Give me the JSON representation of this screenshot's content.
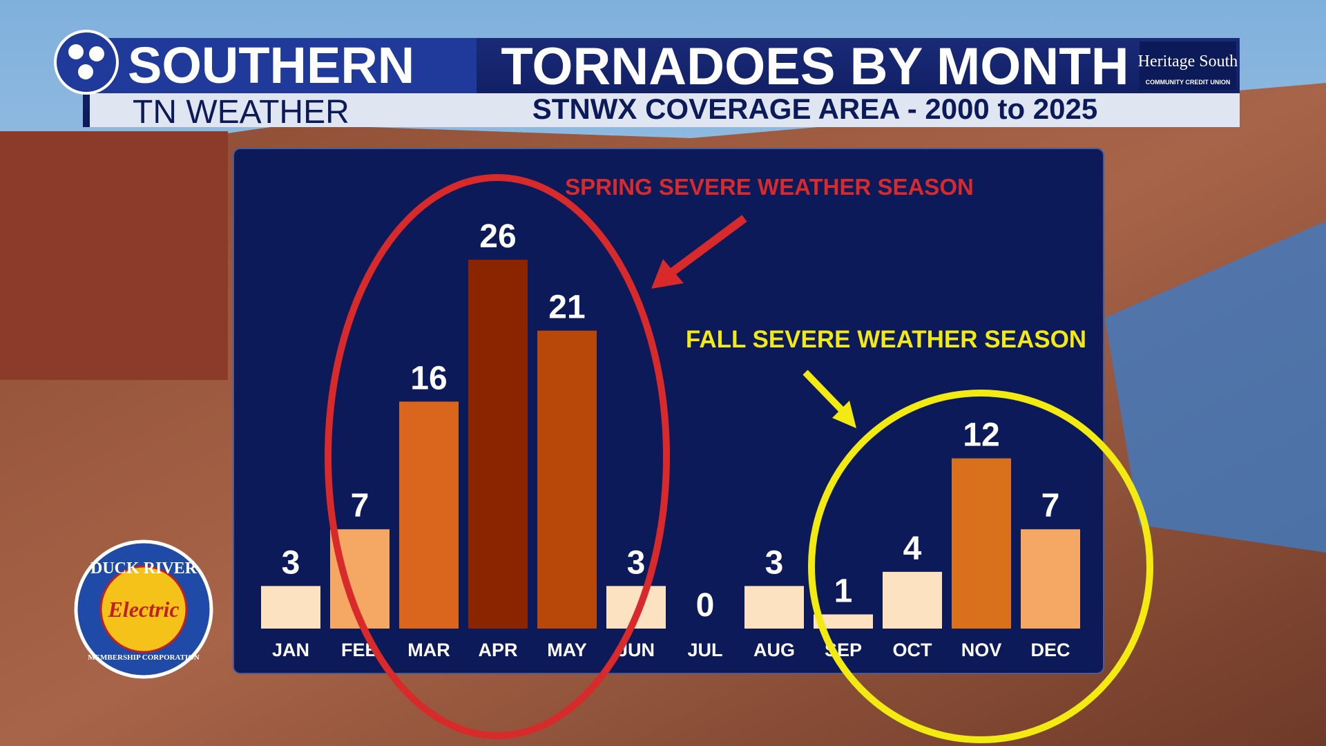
{
  "chart_data": {
    "type": "bar",
    "brand": {
      "line1": "SOUTHERN",
      "line2": "TN WEATHER"
    },
    "title": "TORNADOES BY MONTH",
    "subtitle": "STNWX COVERAGE AREA - 2000 to 2025",
    "sponsor": {
      "name": "Heritage South",
      "tagline": "COMMUNITY CREDIT UNION"
    },
    "logo": {
      "top": "DUCK RIVER",
      "middle": "Electric",
      "bottom": "MEMBERSHIP CORPORATION"
    },
    "annotations": [
      "SPRING SEVERE WEATHER SEASON",
      "FALL SEVERE WEATHER SEASON"
    ],
    "categories": [
      "JAN",
      "FEB",
      "MAR",
      "APR",
      "MAY",
      "JUN",
      "JUL",
      "AUG",
      "SEP",
      "OCT",
      "NOV",
      "DEC"
    ],
    "values": [
      3,
      7,
      16,
      26,
      21,
      3,
      0,
      3,
      1,
      4,
      12,
      7
    ],
    "colors": [
      "#fde2c2",
      "#f5a864",
      "#d9661c",
      "#8a2500",
      "#b8480a",
      "#fde2c2",
      "#fde2c2",
      "#fde2c2",
      "#fde2c2",
      "#fde2c2",
      "#d9701c",
      "#f5a864"
    ]
  }
}
